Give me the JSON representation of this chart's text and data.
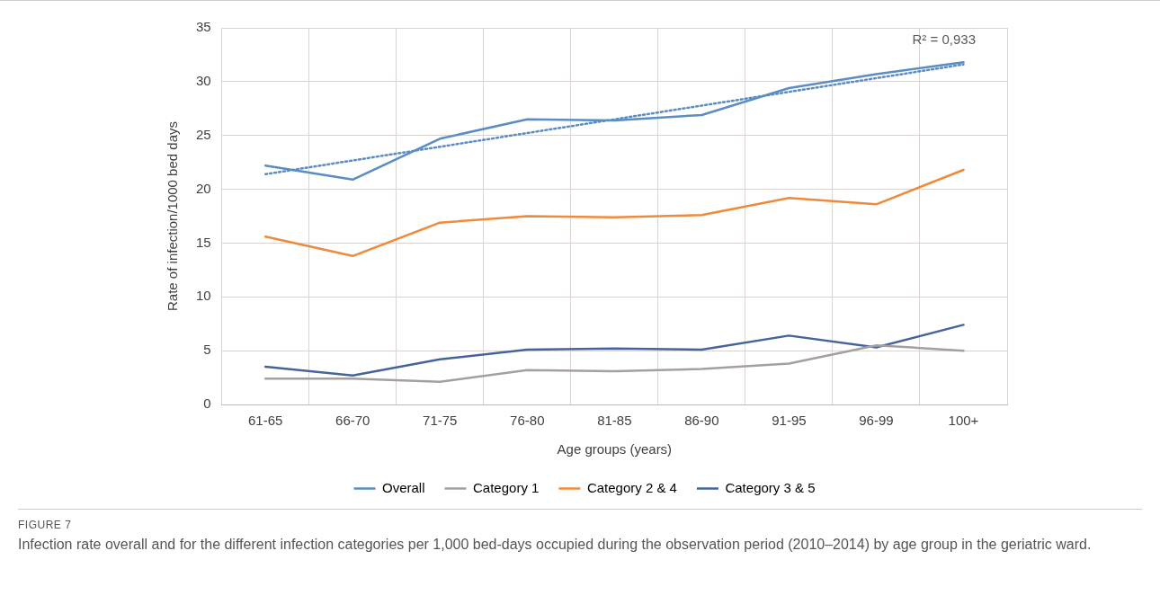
{
  "chart_data": {
    "type": "line",
    "xlabel": "Age groups (years)",
    "ylabel": "Rate of infection/1000 bed days",
    "categories": [
      "61-65",
      "66-70",
      "71-75",
      "76-80",
      "81-85",
      "86-90",
      "91-95",
      "96-99",
      "100+"
    ],
    "series": [
      {
        "name": "Overall",
        "color": "#5b8cc2",
        "values": [
          22.2,
          20.9,
          24.7,
          26.5,
          26.4,
          26.9,
          29.4,
          30.7,
          31.8
        ]
      },
      {
        "name": "Category 1",
        "color": "#a5a09f",
        "values": [
          2.4,
          2.4,
          2.1,
          3.2,
          3.1,
          3.3,
          3.8,
          5.5,
          5.0
        ]
      },
      {
        "name": "Category 2 & 4",
        "color": "#ee8a3c",
        "values": [
          15.6,
          13.8,
          16.9,
          17.5,
          17.4,
          17.6,
          19.2,
          18.6,
          21.8
        ]
      },
      {
        "name": "Category 3 & 5",
        "color": "#46649c",
        "values": [
          3.5,
          2.7,
          4.2,
          5.1,
          5.2,
          5.1,
          6.4,
          5.3,
          7.4
        ]
      },
      {
        "type": "line",
        "color": "#5b8cc2",
        "line_style": "dotted",
        "x": [
          "61-65",
          "100+"
        ],
        "values": [
          21.4,
          31.6
        ]
      }
    ],
    "ylim": [
      0,
      35
    ],
    "yticks": [
      0,
      5,
      10,
      15,
      20,
      25,
      30,
      35
    ],
    "grid": true,
    "legend": "bottom",
    "marker": "none",
    "line_style": "solid",
    "annotations": [
      "R² = 0,933",
      "FIGURE 7",
      "Infection rate overall and for the different infection categories per 1,000 bed-days occupied during the observation period (2010–2014) by age group in the geriatric ward."
    ]
  }
}
